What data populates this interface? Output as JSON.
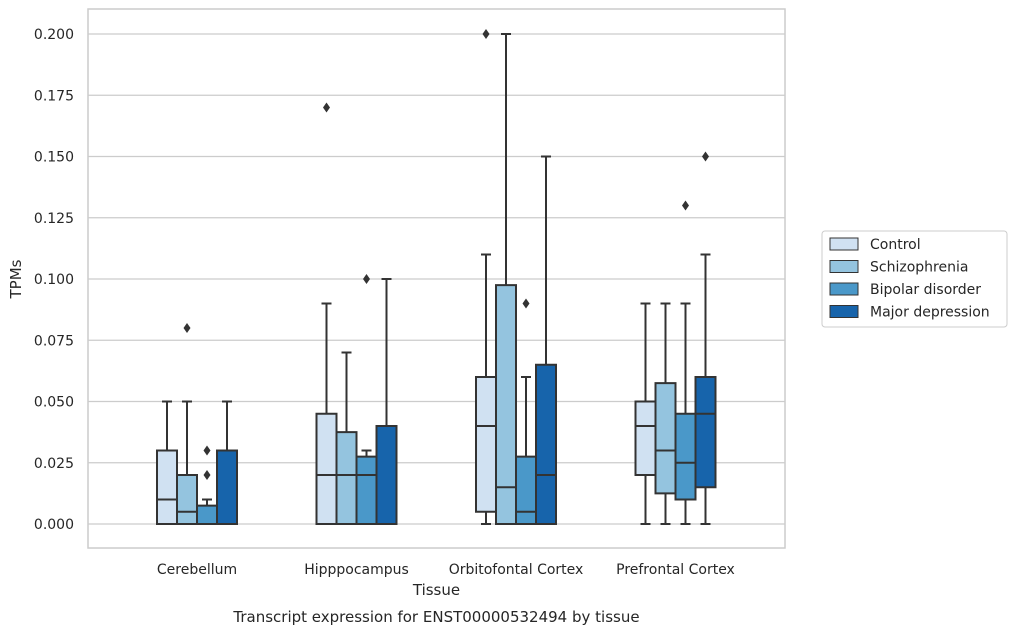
{
  "chart_data": {
    "type": "box",
    "title": "Transcript expression for ENST00000532494 by tissue",
    "xlabel": "Tissue",
    "ylabel": "TPMs",
    "categories": [
      "Cerebellum",
      "Hipppocampus",
      "Orbitofontal Cortex",
      "Prefrontal Cortex"
    ],
    "ylim": [
      -0.01,
      0.21
    ],
    "yticks": [
      "0.000",
      "0.025",
      "0.050",
      "0.075",
      "0.100",
      "0.125",
      "0.150",
      "0.175",
      "0.200"
    ],
    "grid": "horizontal",
    "legend_position": "right",
    "series": [
      {
        "name": "Control",
        "color": "#d0e1f2",
        "boxes": [
          {
            "whislo": 0.0,
            "q1": 0.0,
            "med": 0.01,
            "q3": 0.03,
            "whishi": 0.05,
            "fliers": []
          },
          {
            "whislo": 0.0,
            "q1": 0.0,
            "med": 0.02,
            "q3": 0.045,
            "whishi": 0.09,
            "fliers": [
              0.17
            ]
          },
          {
            "whislo": 0.0,
            "q1": 0.005,
            "med": 0.04,
            "q3": 0.06,
            "whishi": 0.11,
            "fliers": [
              0.2
            ]
          },
          {
            "whislo": 0.0,
            "q1": 0.02,
            "med": 0.04,
            "q3": 0.05,
            "whishi": 0.09,
            "fliers": []
          }
        ]
      },
      {
        "name": "Schizophrenia",
        "color": "#94c4df",
        "boxes": [
          {
            "whislo": 0.0,
            "q1": 0.0,
            "med": 0.005,
            "q3": 0.02,
            "whishi": 0.05,
            "fliers": [
              0.08
            ]
          },
          {
            "whislo": 0.0,
            "q1": 0.0,
            "med": 0.02,
            "q3": 0.0375,
            "whishi": 0.07,
            "fliers": []
          },
          {
            "whislo": 0.0,
            "q1": 0.0,
            "med": 0.015,
            "q3": 0.0975,
            "whishi": 0.2,
            "fliers": []
          },
          {
            "whislo": 0.0,
            "q1": 0.0125,
            "med": 0.03,
            "q3": 0.0575,
            "whishi": 0.09,
            "fliers": []
          }
        ]
      },
      {
        "name": "Bipolar disorder",
        "color": "#4a98c9",
        "boxes": [
          {
            "whislo": 0.0,
            "q1": 0.0,
            "med": 0.0,
            "q3": 0.0075,
            "whishi": 0.01,
            "fliers": [
              0.02,
              0.03
            ]
          },
          {
            "whislo": 0.0,
            "q1": 0.0,
            "med": 0.02,
            "q3": 0.0275,
            "whishi": 0.03,
            "fliers": [
              0.1
            ]
          },
          {
            "whislo": 0.0,
            "q1": 0.0,
            "med": 0.005,
            "q3": 0.0275,
            "whishi": 0.06,
            "fliers": [
              0.09
            ]
          },
          {
            "whislo": 0.0,
            "q1": 0.01,
            "med": 0.025,
            "q3": 0.045,
            "whishi": 0.09,
            "fliers": [
              0.13
            ]
          }
        ]
      },
      {
        "name": "Major depression",
        "color": "#1764ab",
        "boxes": [
          {
            "whislo": 0.0,
            "q1": 0.0,
            "med": 0.0,
            "q3": 0.03,
            "whishi": 0.05,
            "fliers": []
          },
          {
            "whislo": 0.0,
            "q1": 0.0,
            "med": 0.0,
            "q3": 0.04,
            "whishi": 0.1,
            "fliers": []
          },
          {
            "whislo": 0.0,
            "q1": 0.0,
            "med": 0.02,
            "q3": 0.065,
            "whishi": 0.15,
            "fliers": []
          },
          {
            "whislo": 0.0,
            "q1": 0.015,
            "med": 0.045,
            "q3": 0.06,
            "whishi": 0.11,
            "fliers": [
              0.15
            ]
          }
        ]
      }
    ]
  },
  "colors": {
    "grid": "#cccccc",
    "frame": "#cccccc",
    "box_edge": "#333333",
    "text": "#262626"
  }
}
